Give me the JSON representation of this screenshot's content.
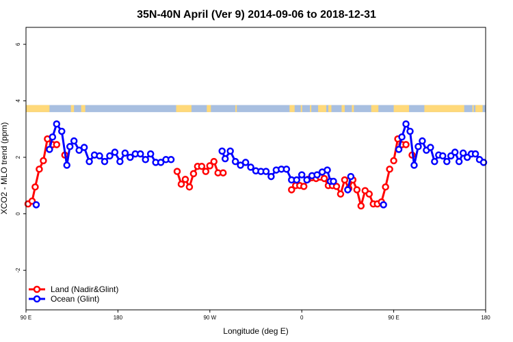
{
  "chart_data": {
    "type": "line",
    "title": "35N-40N April (Ver 9)   2014-09-06 to 2018-12-31",
    "xlabel": "Longitude (deg E)",
    "ylabel": "XCO2 - MLO trend (ppm)",
    "xlim": [
      90,
      540
    ],
    "ylim": [
      -3.4,
      6.6
    ],
    "x_ticks": [
      {
        "value": 90,
        "label": "90 E"
      },
      {
        "value": 180,
        "label": "180"
      },
      {
        "value": 270,
        "label": "90 W"
      },
      {
        "value": 360,
        "label": "0"
      },
      {
        "value": 450,
        "label": "90 E"
      },
      {
        "value": 540,
        "label": "180"
      }
    ],
    "y_ticks": [
      {
        "value": -2,
        "label": "-2"
      },
      {
        "value": 0,
        "label": "0"
      },
      {
        "value": 2,
        "label": "2"
      },
      {
        "value": 4,
        "label": "4"
      },
      {
        "value": 6,
        "label": "6"
      }
    ],
    "land_strip": {
      "y_bottom": 3.6,
      "y_top": 3.85,
      "ocean_color": "#a8bfe0",
      "land_color": "#ffd97a",
      "land_segments": [
        [
          90,
          113
        ],
        [
          134,
          137
        ],
        [
          144,
          148
        ],
        [
          237,
          240
        ],
        [
          240,
          252
        ],
        [
          267,
          271
        ],
        [
          295,
          295
        ],
        [
          348,
          353
        ],
        [
          359,
          360
        ],
        [
          368,
          369
        ],
        [
          376,
          384
        ],
        [
          386,
          389
        ],
        [
          399,
          402
        ],
        [
          409,
          411
        ],
        [
          428,
          435
        ],
        [
          450,
          465
        ],
        [
          480,
          519
        ],
        [
          527,
          527
        ],
        [
          530,
          537
        ]
      ]
    },
    "legend": {
      "position": "bottom-left"
    },
    "series": [
      {
        "name": "Land (Nadir&Glint)",
        "color": "#ff0000",
        "segments": [
          {
            "x": [
              92,
              96,
              99,
              103,
              107,
              111,
              116
            ],
            "y": [
              0.35,
              0.45,
              0.95,
              1.58,
              1.88,
              2.65,
              2.45
            ]
          },
          {
            "x": [
              120
            ],
            "y": [
              2.45
            ]
          },
          {
            "x": [
              128
            ],
            "y": [
              2.08
            ]
          },
          {
            "x": [
              238,
              242,
              246,
              250,
              254,
              258,
              262,
              266,
              270,
              274,
              278,
              283
            ],
            "y": [
              1.5,
              1.05,
              1.22,
              0.95,
              1.42,
              1.68,
              1.68,
              1.5,
              1.7,
              1.85,
              1.45,
              1.45
            ]
          },
          {
            "x": [
              350,
              354,
              358,
              362,
              366,
              370,
              374,
              378,
              382,
              386,
              390,
              394,
              398,
              402,
              406,
              410,
              414,
              418,
              422,
              426,
              430,
              434,
              438,
              442,
              446
            ],
            "y": [
              0.85,
              1.0,
              1.0,
              0.97,
              1.22,
              1.28,
              1.25,
              1.3,
              1.25,
              1.0,
              1.0,
              0.97,
              0.7,
              1.2,
              0.9,
              1.2,
              0.85,
              0.28,
              0.82,
              0.7,
              0.35,
              0.35,
              0.42,
              0.95,
              1.58
            ]
          },
          {
            "x": [
              450,
              454,
              458
            ],
            "y": [
              1.88,
              2.65,
              2.45
            ]
          },
          {
            "x": [
              462
            ],
            "y": [
              2.45
            ]
          },
          {
            "x": [
              468
            ],
            "y": [
              2.08
            ]
          }
        ]
      },
      {
        "name": "Ocean (Glint)",
        "color": "#0000ff",
        "segments": [
          {
            "x": [
              100
            ],
            "y": [
              0.32
            ]
          },
          {
            "x": [
              113,
              116,
              120,
              125,
              130,
              133,
              137,
              142,
              147,
              152,
              157,
              162,
              167,
              172,
              177,
              182,
              187,
              192,
              197,
              202,
              207,
              212,
              217,
              222,
              227,
              232
            ],
            "y": [
              2.28,
              2.72,
              3.18,
              2.92,
              1.72,
              2.38,
              2.58,
              2.25,
              2.35,
              1.85,
              2.08,
              2.05,
              1.85,
              2.05,
              2.18,
              1.85,
              2.15,
              2.0,
              2.12,
              2.12,
              1.92,
              2.12,
              1.82,
              1.82,
              1.92,
              1.92
            ]
          },
          {
            "x": [
              282,
              285,
              290,
              295,
              300,
              305,
              310,
              315,
              320,
              325,
              330,
              335,
              340,
              345,
              350,
              355,
              360,
              365,
              370,
              375,
              380,
              385,
              388,
              391
            ],
            "y": [
              2.22,
              1.95,
              2.22,
              1.85,
              1.72,
              1.82,
              1.65,
              1.52,
              1.5,
              1.5,
              1.32,
              1.55,
              1.58,
              1.58,
              1.2,
              1.2,
              1.38,
              1.2,
              1.35,
              1.38,
              1.48,
              1.55,
              1.15,
              1.15
            ]
          },
          {
            "x": [
              405,
              408
            ],
            "y": [
              0.85,
              1.32
            ]
          },
          {
            "x": [
              440
            ],
            "y": [
              0.32
            ]
          },
          {
            "x": [
              455,
              458,
              462,
              466,
              470,
              474,
              478,
              482,
              486,
              490,
              494,
              498,
              502,
              506,
              510,
              514,
              518
            ],
            "y": [
              2.28,
              2.72,
              3.18,
              2.92,
              1.72,
              2.38,
              2.58,
              2.25,
              2.35,
              1.85,
              2.08,
              2.05,
              1.85,
              2.05,
              2.18,
              1.85,
              2.15
            ]
          },
          {
            "x": [
              522,
              526,
              530,
              534,
              538
            ],
            "y": [
              2.0,
              2.12,
              2.12,
              1.92,
              1.82
            ]
          }
        ]
      }
    ]
  }
}
